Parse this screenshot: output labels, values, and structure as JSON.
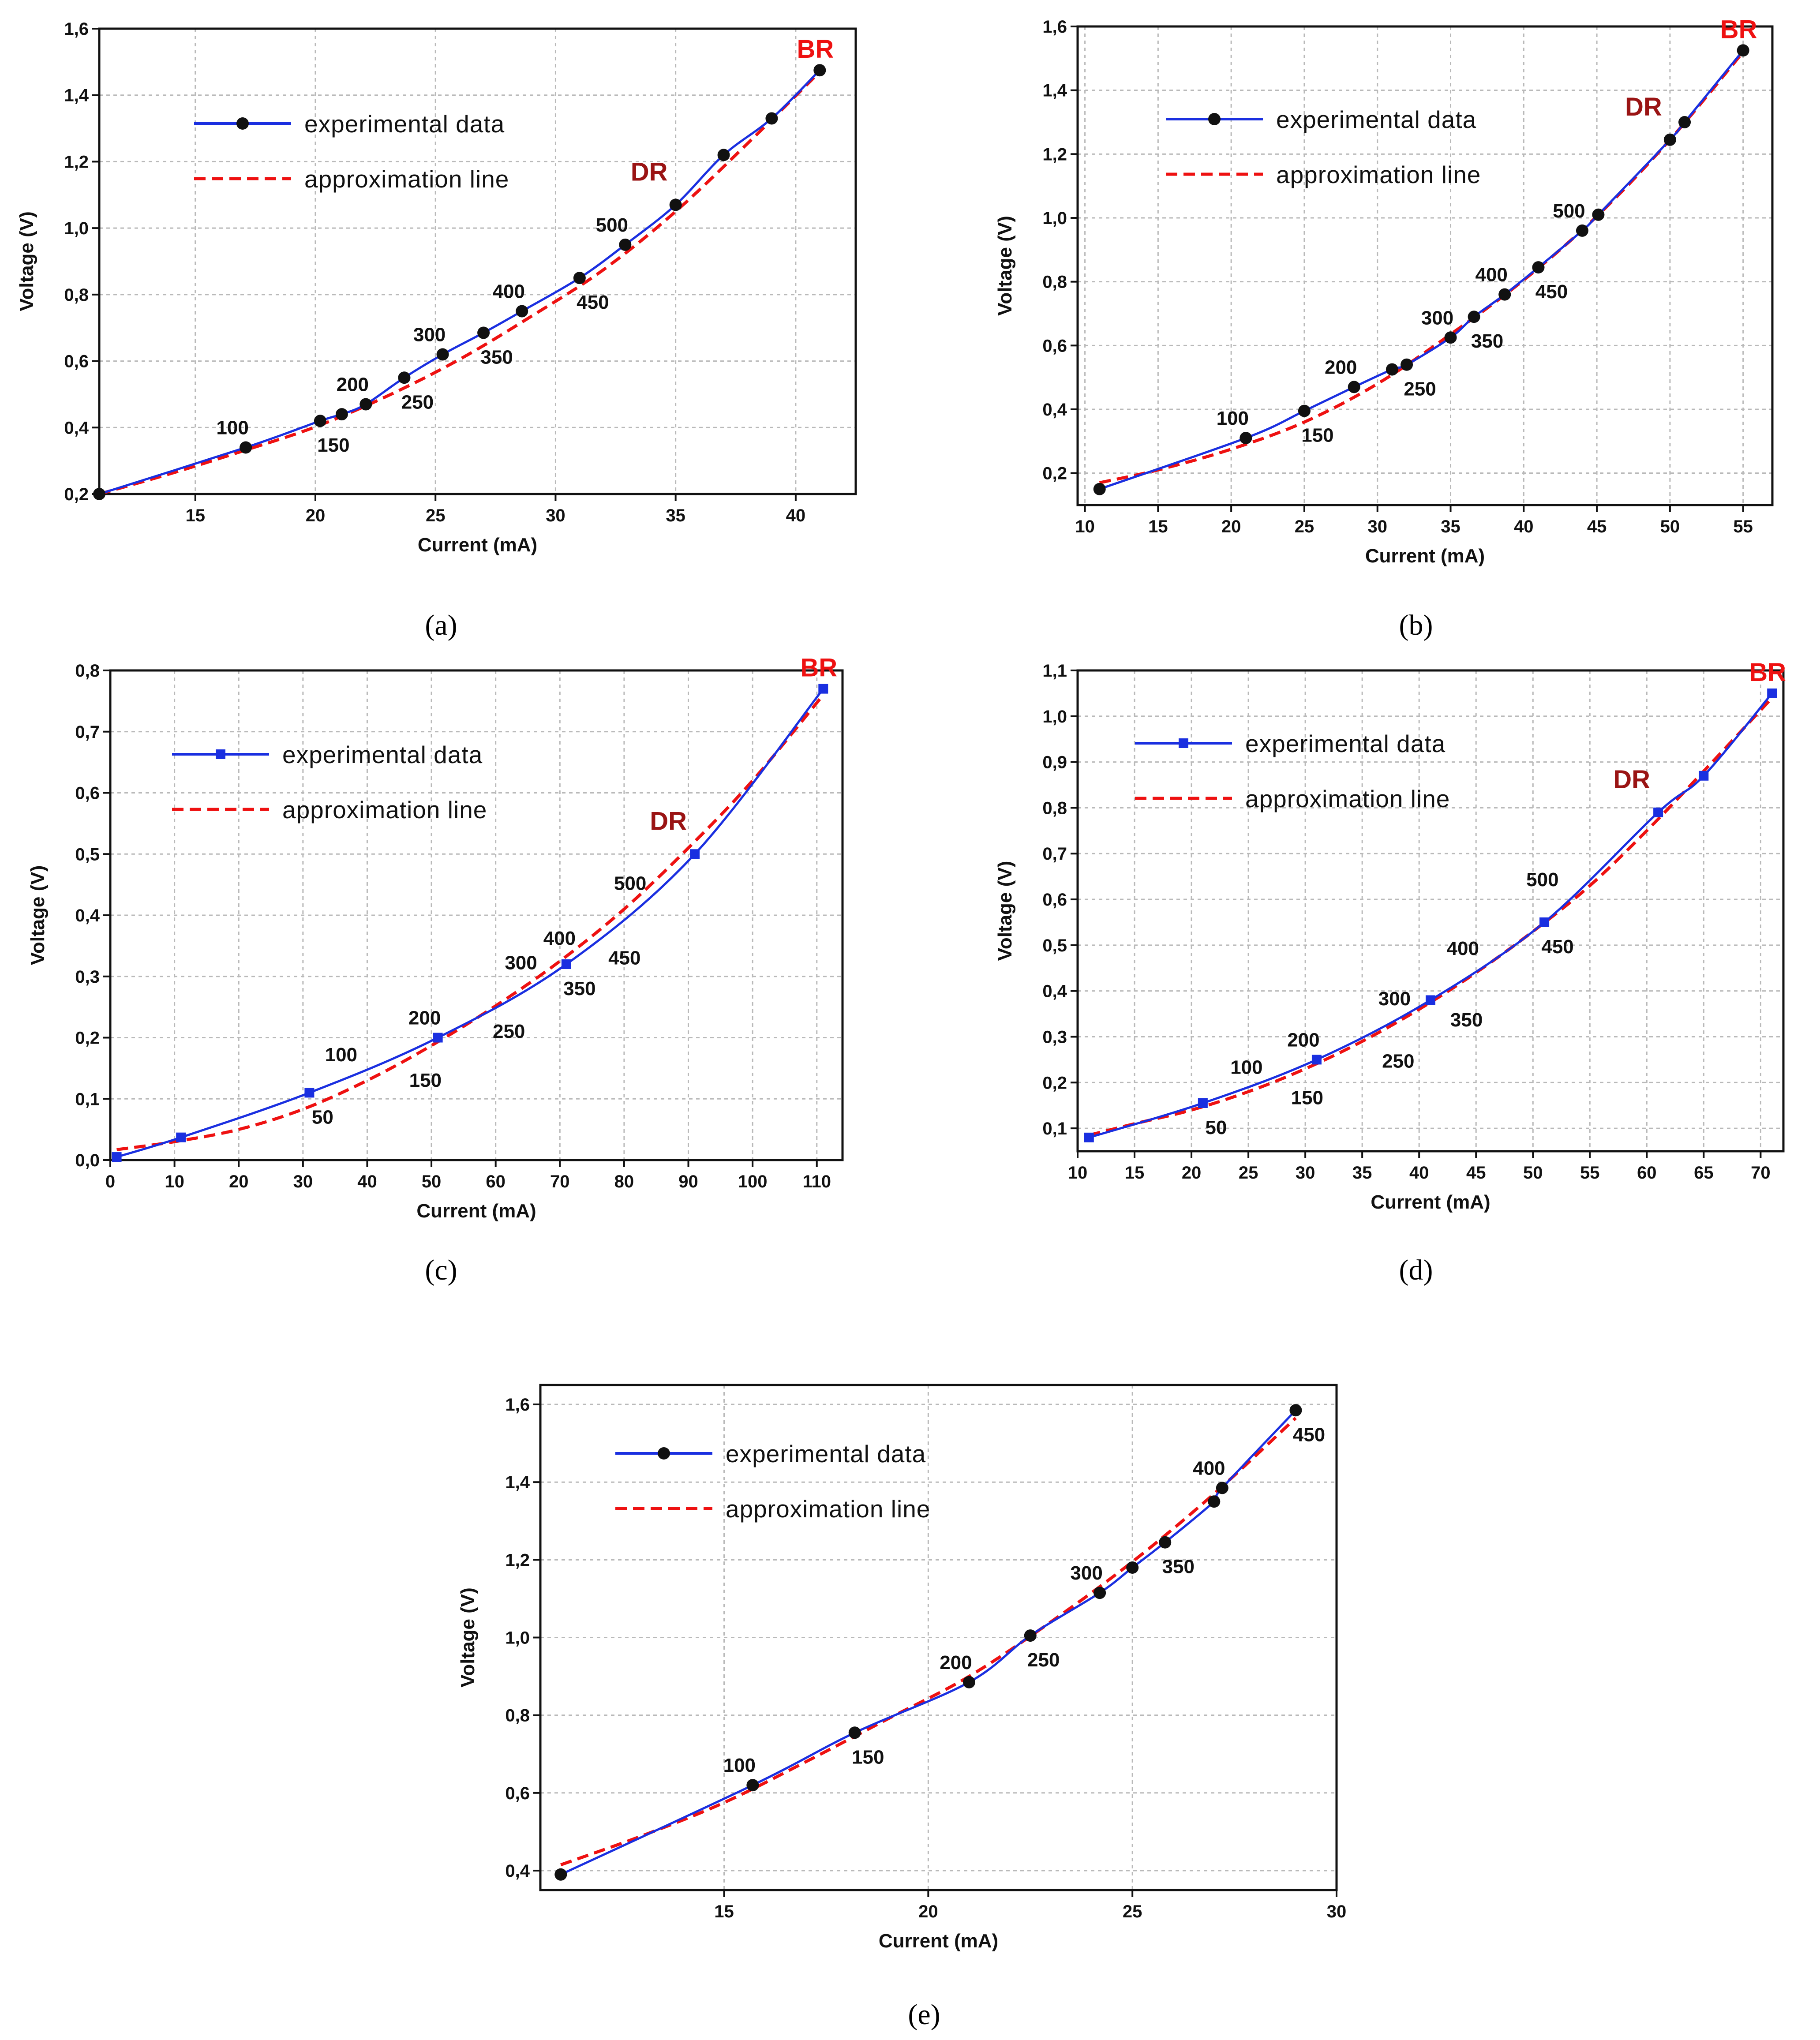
{
  "colors": {
    "experimental": "#1a2fe0",
    "approximation": "#ee1111",
    "dr": "#9a1414",
    "br": "#ee1111",
    "marker_round": "#111111",
    "marker_square": "#1a2fe0"
  },
  "chart_data": [
    {
      "id": "a",
      "type": "line",
      "panel_label": "(a)",
      "xlabel": "Current (mA)",
      "ylabel": "Voltage (V)",
      "xlim": [
        11,
        42.5
      ],
      "ylim": [
        0.2,
        1.6
      ],
      "xticks": [
        15,
        20,
        25,
        30,
        35,
        40
      ],
      "xtick_labels": [
        "15",
        "20",
        "25",
        "30",
        "35",
        "40"
      ],
      "yticks": [
        0.2,
        0.4,
        0.6,
        0.8,
        1.0,
        1.2,
        1.4,
        1.6
      ],
      "ytick_labels": [
        "0,2",
        "0,4",
        "0,6",
        "0,8",
        "1,0",
        "1,2",
        "1,4",
        "1,6"
      ],
      "marker": "circle",
      "legend": {
        "experimental": "experimental data",
        "approximation": "approximation line"
      },
      "series": [
        {
          "name": "experimental data",
          "x": [
            11,
            17.1,
            20.2,
            21.1,
            22.1,
            23.7,
            25.3,
            27.0,
            28.6,
            31.0,
            32.9,
            35.0,
            37.0,
            39.0,
            41.0
          ],
          "y": [
            0.2,
            0.34,
            0.42,
            0.44,
            0.47,
            0.55,
            0.62,
            0.685,
            0.75,
            0.85,
            0.95,
            1.07,
            1.22,
            1.33,
            1.475
          ]
        },
        {
          "name": "approximation line",
          "x": [
            11,
            14,
            17,
            20,
            23,
            26,
            29,
            32,
            35,
            38,
            41
          ],
          "y": [
            0.2,
            0.262,
            0.33,
            0.402,
            0.495,
            0.605,
            0.735,
            0.875,
            1.05,
            1.255,
            1.47
          ]
        }
      ],
      "point_labels": [
        {
          "text": "100",
          "x": 17.1,
          "y": 0.34,
          "pos": "above"
        },
        {
          "text": "150",
          "x": 20.2,
          "y": 0.42,
          "pos": "below"
        },
        {
          "text": "200",
          "x": 22.1,
          "y": 0.47,
          "pos": "above"
        },
        {
          "text": "250",
          "x": 23.7,
          "y": 0.55,
          "pos": "below"
        },
        {
          "text": "300",
          "x": 25.3,
          "y": 0.62,
          "pos": "above"
        },
        {
          "text": "350",
          "x": 27.0,
          "y": 0.685,
          "pos": "below"
        },
        {
          "text": "400",
          "x": 28.6,
          "y": 0.75,
          "pos": "above"
        },
        {
          "text": "450",
          "x": 31.0,
          "y": 0.85,
          "pos": "below"
        },
        {
          "text": "500",
          "x": 32.9,
          "y": 0.95,
          "pos": "above"
        }
      ],
      "dr": {
        "text": "DR",
        "x": 35.0,
        "y": 1.07
      },
      "br": {
        "text": "BR",
        "x": 41.0,
        "y": 1.475
      }
    },
    {
      "id": "b",
      "type": "line",
      "panel_label": "(b)",
      "xlabel": "Current (mA)",
      "ylabel": "Voltage (V)",
      "xlim": [
        9.5,
        57
      ],
      "ylim": [
        0.1,
        1.6
      ],
      "xticks": [
        10,
        15,
        20,
        25,
        30,
        35,
        40,
        45,
        50,
        55
      ],
      "xtick_labels": [
        "10",
        "15",
        "20",
        "25",
        "30",
        "35",
        "40",
        "45",
        "50",
        "55"
      ],
      "yticks": [
        0.2,
        0.4,
        0.6,
        0.8,
        1.0,
        1.2,
        1.4,
        1.6
      ],
      "ytick_labels": [
        "0,2",
        "0,4",
        "0,6",
        "0,8",
        "1,0",
        "1,2",
        "1,4",
        "1,6"
      ],
      "marker": "circle",
      "legend": {
        "experimental": "experimental data",
        "approximation": "approximation line"
      },
      "series": [
        {
          "name": "experimental data",
          "x": [
            11,
            21,
            25,
            28.4,
            31,
            32,
            35,
            36.6,
            38.7,
            41,
            44,
            45.1,
            50,
            51,
            55
          ],
          "y": [
            0.15,
            0.31,
            0.395,
            0.47,
            0.525,
            0.54,
            0.625,
            0.69,
            0.76,
            0.845,
            0.96,
            1.01,
            1.245,
            1.3,
            1.525
          ]
        },
        {
          "name": "approximation line",
          "x": [
            11,
            15,
            20,
            25,
            30,
            35,
            40,
            45,
            50,
            55
          ],
          "y": [
            0.17,
            0.21,
            0.275,
            0.36,
            0.48,
            0.635,
            0.805,
            1.005,
            1.245,
            1.52
          ]
        }
      ],
      "point_labels": [
        {
          "text": "100",
          "x": 21,
          "y": 0.31,
          "pos": "above"
        },
        {
          "text": "150",
          "x": 25,
          "y": 0.395,
          "pos": "below"
        },
        {
          "text": "200",
          "x": 28.4,
          "y": 0.47,
          "pos": "above"
        },
        {
          "text": "250",
          "x": 32,
          "y": 0.54,
          "pos": "below"
        },
        {
          "text": "300",
          "x": 35,
          "y": 0.625,
          "pos": "above"
        },
        {
          "text": "350",
          "x": 36.6,
          "y": 0.69,
          "pos": "below"
        },
        {
          "text": "400",
          "x": 38.7,
          "y": 0.76,
          "pos": "above"
        },
        {
          "text": "450",
          "x": 41,
          "y": 0.845,
          "pos": "below"
        },
        {
          "text": "500",
          "x": 44,
          "y": 0.96,
          "pos": "above"
        }
      ],
      "dr": {
        "text": "DR",
        "x": 50,
        "y": 1.245
      },
      "br": {
        "text": "BR",
        "x": 55,
        "y": 1.525
      }
    },
    {
      "id": "c",
      "type": "line",
      "panel_label": "(c)",
      "xlabel": "Current (mA)",
      "ylabel": "Voltage (V)",
      "xlim": [
        0,
        114
      ],
      "ylim": [
        0.0,
        0.8
      ],
      "xticks": [
        0,
        10,
        20,
        30,
        40,
        50,
        60,
        70,
        80,
        90,
        100,
        110
      ],
      "xtick_labels": [
        "0",
        "10",
        "20",
        "30",
        "40",
        "50",
        "60",
        "70",
        "80",
        "90",
        "100",
        "110"
      ],
      "yticks": [
        0.0,
        0.1,
        0.2,
        0.3,
        0.4,
        0.5,
        0.6,
        0.7,
        0.8
      ],
      "ytick_labels": [
        "0,0",
        "0,1",
        "0,2",
        "0,3",
        "0,4",
        "0,5",
        "0,6",
        "0,7",
        "0,8"
      ],
      "marker": "square",
      "legend": {
        "experimental": "experimental data",
        "approximation": "approximation line"
      },
      "series": [
        {
          "name": "experimental data",
          "x": [
            1,
            11,
            31,
            51,
            71,
            91,
            111
          ],
          "y": [
            0.005,
            0.037,
            0.11,
            0.2,
            0.32,
            0.5,
            0.77
          ]
        },
        {
          "name": "approximation line",
          "x": [
            1,
            10,
            20,
            30,
            40,
            50,
            60,
            70,
            80,
            90,
            100,
            111
          ],
          "y": [
            0.017,
            0.03,
            0.05,
            0.083,
            0.13,
            0.187,
            0.252,
            0.325,
            0.41,
            0.51,
            0.62,
            0.76
          ]
        }
      ],
      "point_labels": [
        {
          "text": "50",
          "x": 31,
          "y": 0.11,
          "pos": "below"
        },
        {
          "text": "100",
          "x": 38,
          "y": 0.14,
          "pos": "above"
        },
        {
          "text": "150",
          "x": 47,
          "y": 0.17,
          "pos": "below"
        },
        {
          "text": "200",
          "x": 51,
          "y": 0.2,
          "pos": "above"
        },
        {
          "text": "250",
          "x": 60,
          "y": 0.25,
          "pos": "below"
        },
        {
          "text": "300",
          "x": 66,
          "y": 0.29,
          "pos": "above"
        },
        {
          "text": "350",
          "x": 71,
          "y": 0.32,
          "pos": "below"
        },
        {
          "text": "400",
          "x": 72,
          "y": 0.33,
          "pos": "above"
        },
        {
          "text": "450",
          "x": 78,
          "y": 0.37,
          "pos": "below"
        },
        {
          "text": "500",
          "x": 83,
          "y": 0.42,
          "pos": "above"
        }
      ],
      "dr": {
        "text": "DR",
        "x": 91,
        "y": 0.5
      },
      "br": {
        "text": "BR",
        "x": 111,
        "y": 0.77
      }
    },
    {
      "id": "d",
      "type": "line",
      "panel_label": "(d)",
      "xlabel": "Current (mA)",
      "ylabel": "Voltage (V)",
      "xlim": [
        10,
        72
      ],
      "ylim": [
        0.05,
        1.1
      ],
      "xticks": [
        10,
        15,
        20,
        25,
        30,
        35,
        40,
        45,
        50,
        55,
        60,
        65,
        70
      ],
      "xtick_labels": [
        "10",
        "15",
        "20",
        "25",
        "30",
        "35",
        "40",
        "45",
        "50",
        "55",
        "60",
        "65",
        "70"
      ],
      "yticks": [
        0.1,
        0.2,
        0.3,
        0.4,
        0.5,
        0.6,
        0.7,
        0.8,
        0.9,
        1.0,
        1.1
      ],
      "ytick_labels": [
        "0,1",
        "0,2",
        "0,3",
        "0,4",
        "0,5",
        "0,6",
        "0,7",
        "0,8",
        "0,9",
        "1,0",
        "1,1"
      ],
      "marker": "square",
      "legend": {
        "experimental": "experimental data",
        "approximation": "approximation line"
      },
      "series": [
        {
          "name": "experimental data",
          "x": [
            11,
            21,
            31,
            41,
            51,
            61,
            65,
            71
          ],
          "y": [
            0.08,
            0.155,
            0.25,
            0.38,
            0.55,
            0.79,
            0.87,
            1.05
          ]
        },
        {
          "name": "approximation line",
          "x": [
            11,
            15,
            20,
            25,
            30,
            35,
            40,
            45,
            50,
            55,
            60,
            65,
            71
          ],
          "y": [
            0.085,
            0.11,
            0.14,
            0.18,
            0.23,
            0.29,
            0.36,
            0.44,
            0.53,
            0.63,
            0.75,
            0.88,
            1.04
          ]
        }
      ],
      "point_labels": [
        {
          "text": "50",
          "x": 21,
          "y": 0.155,
          "pos": "below"
        },
        {
          "text": "100",
          "x": 26,
          "y": 0.19,
          "pos": "above"
        },
        {
          "text": "150",
          "x": 29,
          "y": 0.22,
          "pos": "below"
        },
        {
          "text": "200",
          "x": 31,
          "y": 0.25,
          "pos": "above"
        },
        {
          "text": "250",
          "x": 37,
          "y": 0.3,
          "pos": "below"
        },
        {
          "text": "300",
          "x": 39,
          "y": 0.34,
          "pos": "above"
        },
        {
          "text": "350",
          "x": 43,
          "y": 0.39,
          "pos": "below"
        },
        {
          "text": "400",
          "x": 45,
          "y": 0.45,
          "pos": "above"
        },
        {
          "text": "450",
          "x": 51,
          "y": 0.55,
          "pos": "below"
        },
        {
          "text": "500",
          "x": 52,
          "y": 0.6,
          "pos": "above"
        }
      ],
      "dr": {
        "text": "DR",
        "x": 61,
        "y": 0.79
      },
      "br": {
        "text": "BR",
        "x": 71,
        "y": 1.05
      }
    },
    {
      "id": "e",
      "type": "line",
      "panel_label": "(e)",
      "xlabel": "Current (mA)",
      "ylabel": "Voltage (V)",
      "xlim": [
        10.5,
        30
      ],
      "ylim": [
        0.35,
        1.65
      ],
      "xticks": [
        15,
        20,
        25,
        30
      ],
      "xtick_labels": [
        "15",
        "20",
        "25",
        "30"
      ],
      "yticks": [
        0.4,
        0.6,
        0.8,
        1.0,
        1.2,
        1.4,
        1.6
      ],
      "ytick_labels": [
        "0,4",
        "0,6",
        "0,8",
        "1,0",
        "1,2",
        "1,4",
        "1,6"
      ],
      "marker": "circle",
      "legend": {
        "experimental": "experimental data",
        "approximation": "approximation line"
      },
      "series": [
        {
          "name": "experimental data",
          "x": [
            11,
            15.7,
            18.2,
            21.0,
            22.5,
            24.2,
            25.0,
            25.8,
            27.0,
            27.2,
            29.0
          ],
          "y": [
            0.39,
            0.62,
            0.755,
            0.885,
            1.005,
            1.115,
            1.18,
            1.245,
            1.35,
            1.385,
            1.585
          ]
        },
        {
          "name": "approximation line",
          "x": [
            11,
            13,
            15,
            17,
            19,
            21,
            23,
            25,
            27,
            29
          ],
          "y": [
            0.415,
            0.49,
            0.575,
            0.68,
            0.79,
            0.9,
            1.04,
            1.195,
            1.37,
            1.565
          ]
        }
      ],
      "point_labels": [
        {
          "text": "100",
          "x": 15.7,
          "y": 0.62,
          "pos": "above"
        },
        {
          "text": "150",
          "x": 18.2,
          "y": 0.755,
          "pos": "below"
        },
        {
          "text": "200",
          "x": 21.0,
          "y": 0.885,
          "pos": "above"
        },
        {
          "text": "250",
          "x": 22.5,
          "y": 1.005,
          "pos": "below"
        },
        {
          "text": "300",
          "x": 24.2,
          "y": 1.115,
          "pos": "above"
        },
        {
          "text": "350",
          "x": 25.8,
          "y": 1.245,
          "pos": "below"
        },
        {
          "text": "400",
          "x": 27.2,
          "y": 1.385,
          "pos": "above"
        },
        {
          "text": "450",
          "x": 29.0,
          "y": 1.585,
          "pos": "below"
        }
      ]
    }
  ]
}
